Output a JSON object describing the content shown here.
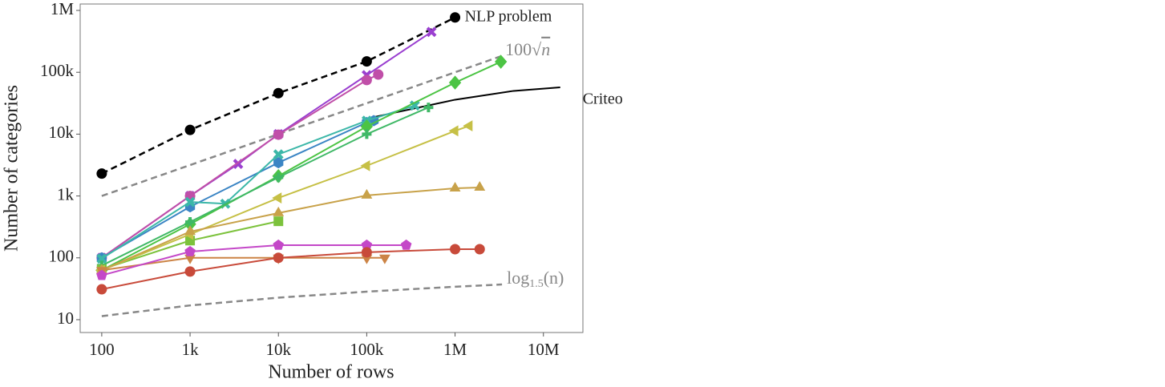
{
  "chart_data": {
    "type": "line",
    "xlabel": "Number of rows",
    "ylabel": "Number of categories",
    "xscale": "log",
    "yscale": "log",
    "xlim": [
      57,
      28000000
    ],
    "ylim": [
      6.2,
      1270000
    ],
    "xticks": [
      {
        "value": 100,
        "label": "100"
      },
      {
        "value": 1000,
        "label": "1k"
      },
      {
        "value": 10000,
        "label": "10k"
      },
      {
        "value": 100000,
        "label": "100k"
      },
      {
        "value": 1000000,
        "label": "1M"
      },
      {
        "value": 10000000,
        "label": "10M"
      }
    ],
    "yticks": [
      {
        "value": 10,
        "label": "10"
      },
      {
        "value": 100,
        "label": "100"
      },
      {
        "value": 1000,
        "label": "1k"
      },
      {
        "value": 10000,
        "label": "10k"
      },
      {
        "value": 100000,
        "label": "100k"
      },
      {
        "value": 1000000,
        "label": "1M"
      }
    ],
    "series": [
      {
        "name": "NLP problem",
        "color": "#000000",
        "marker": "circle",
        "dash": true,
        "x": [
          100,
          1000,
          10000,
          100000,
          1000000
        ],
        "values": [
          2300,
          11700,
          46000,
          150000,
          770000
        ]
      },
      {
        "name": [
          "100",
          "√",
          "n"
        ],
        "color": "#888888",
        "marker": "none",
        "dash": true,
        "x": [
          100,
          10000,
          1000000,
          3400000
        ],
        "values": [
          1000,
          10000,
          100000,
          184000
        ]
      },
      {
        "name": "Criteo",
        "color": "#000000",
        "marker": "none",
        "dash": false,
        "x": [
          100000,
          1000000,
          4600000,
          15500000
        ],
        "values": [
          17800,
          36000,
          50000,
          57000
        ]
      },
      {
        "name": [
          "log",
          "1.5",
          "(n)"
        ],
        "color": "#888888",
        "marker": "none",
        "dash": true,
        "x": [
          100,
          1000,
          10000,
          100000,
          1000000,
          3400000
        ],
        "values": [
          11.4,
          17,
          22.7,
          28.4,
          34.1,
          37.1
        ]
      },
      {
        "color": "#9a3fd0",
        "marker": "x",
        "dash": false,
        "x": [
          100,
          1000,
          3500,
          10000,
          100000,
          540000
        ],
        "values": [
          100,
          1000,
          3300,
          10000,
          90000,
          450000
        ]
      },
      {
        "color": "#c04fa8",
        "marker": "circle",
        "dash": false,
        "x": [
          100,
          1000,
          10000,
          100000,
          135000
        ],
        "values": [
          100,
          1000,
          9800,
          75000,
          92000
        ]
      },
      {
        "color": "#3b85c4",
        "marker": "hexagon",
        "dash": false,
        "x": [
          100,
          1000,
          10000,
          100000,
          120000
        ],
        "values": [
          100,
          670,
          3450,
          15400,
          16500
        ]
      },
      {
        "color": "#3cb7a8",
        "marker": "x",
        "dash": false,
        "x": [
          100,
          1000,
          2500,
          10000,
          100000,
          350000
        ],
        "values": [
          97,
          800,
          750,
          4700,
          16500,
          29000
        ]
      },
      {
        "color": "#4cc444",
        "marker": "diamond",
        "dash": false,
        "x": [
          100,
          1000,
          10000,
          100000,
          1000000,
          3300000
        ],
        "values": [
          63,
          350,
          2100,
          13300,
          68000,
          148000
        ]
      },
      {
        "color": "#3fb866",
        "marker": "plus",
        "dash": false,
        "x": [
          100,
          1000,
          10000,
          100000,
          500000
        ],
        "values": [
          75,
          380,
          2000,
          10000,
          27000
        ]
      },
      {
        "color": "#7cc23c",
        "marker": "square",
        "dash": false,
        "x": [
          100,
          1000,
          10000
        ],
        "values": [
          65,
          190,
          390
        ]
      },
      {
        "color": "#c6c046",
        "marker": "triangle-left",
        "dash": false,
        "x": [
          100,
          1000,
          10000,
          100000,
          1000000,
          1450000
        ],
        "values": [
          63,
          240,
          930,
          3080,
          11300,
          13600
        ]
      },
      {
        "color": "#c8a24a",
        "marker": "triangle-up",
        "dash": false,
        "x": [
          100,
          1000,
          10000,
          100000,
          1000000,
          1900000
        ],
        "values": [
          63,
          265,
          530,
          1020,
          1330,
          1370
        ]
      },
      {
        "color": "#cc8446",
        "marker": "triangle-down",
        "dash": false,
        "x": [
          100,
          1000,
          10000,
          100000,
          160000
        ],
        "values": [
          63,
          100,
          100,
          100,
          100
        ]
      },
      {
        "color": "#c448c8",
        "marker": "pentagon",
        "dash": false,
        "x": [
          100,
          1000,
          10000,
          100000,
          280000
        ],
        "values": [
          52,
          126,
          160,
          160,
          160
        ]
      },
      {
        "color": "#c84a3a",
        "marker": "circle",
        "dash": false,
        "x": [
          100,
          1000,
          10000,
          100000,
          1000000,
          1900000
        ],
        "values": [
          31,
          60,
          100,
          123,
          138,
          138
        ]
      }
    ]
  }
}
